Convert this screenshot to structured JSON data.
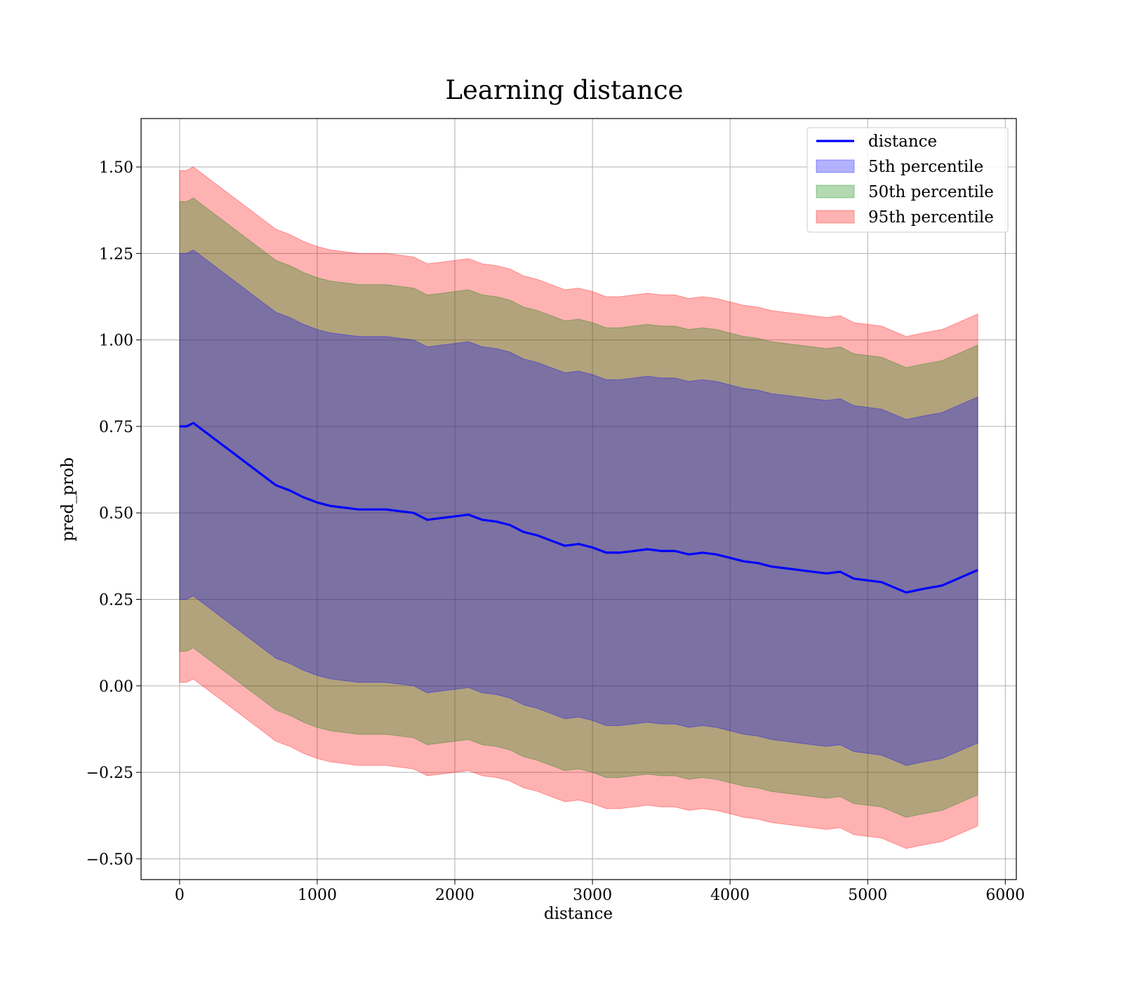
{
  "chart_data": {
    "type": "area",
    "title": "Learning distance",
    "xlabel": "distance",
    "ylabel": "pred_prob",
    "xlim": [
      -280,
      6080
    ],
    "ylim": [
      -0.56,
      1.64
    ],
    "xticks": [
      0,
      1000,
      2000,
      3000,
      4000,
      5000,
      6000
    ],
    "xtick_labels": [
      "0",
      "1000",
      "2000",
      "3000",
      "4000",
      "5000",
      "6000"
    ],
    "yticks": [
      -0.5,
      -0.25,
      0.0,
      0.25,
      0.5,
      0.75,
      1.0,
      1.25,
      1.5
    ],
    "ytick_labels": [
      "−0.50",
      "−0.25",
      "0.00",
      "0.25",
      "0.50",
      "0.75",
      "1.00",
      "1.25",
      "1.50"
    ],
    "grid": true,
    "legend_position": "top-right",
    "x": [
      0,
      50,
      100,
      200,
      300,
      400,
      500,
      600,
      700,
      800,
      900,
      1000,
      1100,
      1200,
      1300,
      1400,
      1500,
      1600,
      1700,
      1800,
      1900,
      2000,
      2100,
      2200,
      2300,
      2400,
      2500,
      2600,
      2700,
      2800,
      2900,
      3000,
      3100,
      3200,
      3300,
      3400,
      3500,
      3600,
      3700,
      3800,
      3900,
      4000,
      4100,
      4200,
      4300,
      4400,
      4500,
      4600,
      4700,
      4800,
      4900,
      5000,
      5100,
      5280,
      5400,
      5540,
      5800
    ],
    "series": [
      {
        "name": "distance",
        "color": "#0000ff",
        "values": [
          0.75,
          0.75,
          0.76,
          0.73,
          0.7,
          0.67,
          0.64,
          0.61,
          0.58,
          0.565,
          0.545,
          0.53,
          0.52,
          0.515,
          0.51,
          0.51,
          0.51,
          0.505,
          0.5,
          0.48,
          0.485,
          0.49,
          0.495,
          0.48,
          0.475,
          0.465,
          0.445,
          0.435,
          0.42,
          0.405,
          0.41,
          0.4,
          0.385,
          0.385,
          0.39,
          0.395,
          0.39,
          0.39,
          0.38,
          0.385,
          0.38,
          0.37,
          0.36,
          0.355,
          0.345,
          0.34,
          0.335,
          0.33,
          0.325,
          0.33,
          0.31,
          0.305,
          0.3,
          0.27,
          0.28,
          0.29,
          0.335
        ]
      }
    ],
    "bands": [
      {
        "name": "5th percentile",
        "color": "#0000ff",
        "lower": [
          0.25,
          0.25,
          0.26,
          0.23,
          0.2,
          0.17,
          0.14,
          0.11,
          0.08,
          0.065,
          0.045,
          0.03,
          0.02,
          0.015,
          0.01,
          0.01,
          0.01,
          0.005,
          0.0,
          -0.02,
          -0.015,
          -0.01,
          -0.005,
          -0.02,
          -0.025,
          -0.035,
          -0.055,
          -0.065,
          -0.08,
          -0.095,
          -0.09,
          -0.1,
          -0.115,
          -0.115,
          -0.11,
          -0.105,
          -0.11,
          -0.11,
          -0.12,
          -0.115,
          -0.12,
          -0.13,
          -0.14,
          -0.145,
          -0.155,
          -0.16,
          -0.165,
          -0.17,
          -0.175,
          -0.17,
          -0.19,
          -0.195,
          -0.2,
          -0.23,
          -0.22,
          -0.21,
          -0.165
        ],
        "upper": [
          1.25,
          1.25,
          1.26,
          1.23,
          1.2,
          1.17,
          1.14,
          1.11,
          1.08,
          1.065,
          1.045,
          1.03,
          1.02,
          1.015,
          1.01,
          1.01,
          1.01,
          1.005,
          1.0,
          0.98,
          0.985,
          0.99,
          0.995,
          0.98,
          0.975,
          0.965,
          0.945,
          0.935,
          0.92,
          0.905,
          0.91,
          0.9,
          0.885,
          0.885,
          0.89,
          0.895,
          0.89,
          0.89,
          0.88,
          0.885,
          0.88,
          0.87,
          0.86,
          0.855,
          0.845,
          0.84,
          0.835,
          0.83,
          0.825,
          0.83,
          0.81,
          0.805,
          0.8,
          0.77,
          0.78,
          0.79,
          0.835
        ]
      },
      {
        "name": "50th percentile",
        "color": "#008000",
        "lower": [
          0.1,
          0.1,
          0.11,
          0.08,
          0.05,
          0.02,
          -0.01,
          -0.04,
          -0.07,
          -0.085,
          -0.105,
          -0.12,
          -0.13,
          -0.135,
          -0.14,
          -0.14,
          -0.14,
          -0.145,
          -0.15,
          -0.17,
          -0.165,
          -0.16,
          -0.155,
          -0.17,
          -0.175,
          -0.185,
          -0.205,
          -0.215,
          -0.23,
          -0.245,
          -0.24,
          -0.25,
          -0.265,
          -0.265,
          -0.26,
          -0.255,
          -0.26,
          -0.26,
          -0.27,
          -0.265,
          -0.27,
          -0.28,
          -0.29,
          -0.295,
          -0.305,
          -0.31,
          -0.315,
          -0.32,
          -0.325,
          -0.32,
          -0.34,
          -0.345,
          -0.35,
          -0.38,
          -0.37,
          -0.36,
          -0.315
        ],
        "upper": [
          1.4,
          1.4,
          1.41,
          1.38,
          1.35,
          1.32,
          1.29,
          1.26,
          1.23,
          1.215,
          1.195,
          1.18,
          1.17,
          1.165,
          1.16,
          1.16,
          1.16,
          1.155,
          1.15,
          1.13,
          1.135,
          1.14,
          1.145,
          1.13,
          1.125,
          1.115,
          1.095,
          1.085,
          1.07,
          1.055,
          1.06,
          1.05,
          1.035,
          1.035,
          1.04,
          1.045,
          1.04,
          1.04,
          1.03,
          1.035,
          1.03,
          1.02,
          1.01,
          1.005,
          0.995,
          0.99,
          0.985,
          0.98,
          0.975,
          0.98,
          0.96,
          0.955,
          0.95,
          0.92,
          0.93,
          0.94,
          0.985
        ]
      },
      {
        "name": "95th percentile",
        "color": "#ff0000",
        "lower": [
          0.01,
          0.01,
          0.02,
          -0.01,
          -0.04,
          -0.07,
          -0.1,
          -0.13,
          -0.16,
          -0.175,
          -0.195,
          -0.21,
          -0.22,
          -0.225,
          -0.23,
          -0.23,
          -0.23,
          -0.235,
          -0.24,
          -0.26,
          -0.255,
          -0.25,
          -0.245,
          -0.26,
          -0.265,
          -0.275,
          -0.295,
          -0.305,
          -0.32,
          -0.335,
          -0.33,
          -0.34,
          -0.355,
          -0.355,
          -0.35,
          -0.345,
          -0.35,
          -0.35,
          -0.36,
          -0.355,
          -0.36,
          -0.37,
          -0.38,
          -0.385,
          -0.395,
          -0.4,
          -0.405,
          -0.41,
          -0.415,
          -0.41,
          -0.43,
          -0.435,
          -0.44,
          -0.47,
          -0.46,
          -0.45,
          -0.405
        ],
        "upper": [
          1.49,
          1.49,
          1.5,
          1.47,
          1.44,
          1.41,
          1.38,
          1.35,
          1.32,
          1.305,
          1.285,
          1.27,
          1.26,
          1.255,
          1.25,
          1.25,
          1.25,
          1.245,
          1.24,
          1.22,
          1.225,
          1.23,
          1.235,
          1.22,
          1.215,
          1.205,
          1.185,
          1.175,
          1.16,
          1.145,
          1.15,
          1.14,
          1.125,
          1.125,
          1.13,
          1.135,
          1.13,
          1.13,
          1.12,
          1.125,
          1.12,
          1.11,
          1.1,
          1.095,
          1.085,
          1.08,
          1.075,
          1.07,
          1.065,
          1.07,
          1.05,
          1.045,
          1.04,
          1.01,
          1.02,
          1.03,
          1.075
        ]
      }
    ]
  }
}
